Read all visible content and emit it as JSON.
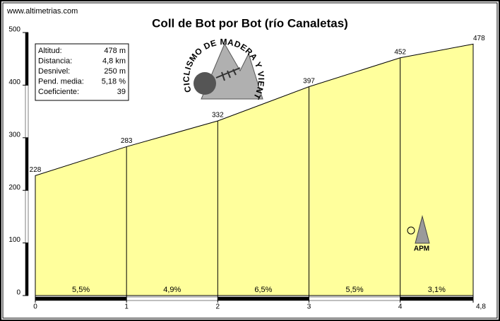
{
  "site": "www.altimetrias.com",
  "chart_data": {
    "type": "area",
    "title": "Coll de Bot por Bot (río Canaletas)",
    "x": [
      0,
      1,
      2,
      3,
      4,
      4.8
    ],
    "values": [
      228,
      283,
      332,
      397,
      452,
      478
    ],
    "color": "#ffff9c",
    "xlim": [
      0,
      4.8
    ],
    "xticks": [
      0,
      1,
      2,
      3,
      4,
      {
        "value": 4.8,
        "label": "4,8"
      }
    ],
    "ylim": [
      0,
      500
    ],
    "yticks": [
      0,
      100,
      200,
      300,
      400,
      500
    ],
    "segment_labels": [
      "5,5%",
      "4,9%",
      "6,5%",
      "5,5%",
      "3,1%"
    ]
  },
  "info_box": [
    [
      "Altitud:",
      "478 m"
    ],
    [
      "Distancia:",
      "4,8 km"
    ],
    [
      "Desnivel:",
      "250 m"
    ],
    [
      "Pend. media:",
      "5,18 %"
    ],
    [
      "Coeficiente:",
      "39"
    ]
  ],
  "logo": {
    "text": "CICLISMO DE MADERA Y VIENTO"
  },
  "badge": {
    "text": "APM"
  }
}
